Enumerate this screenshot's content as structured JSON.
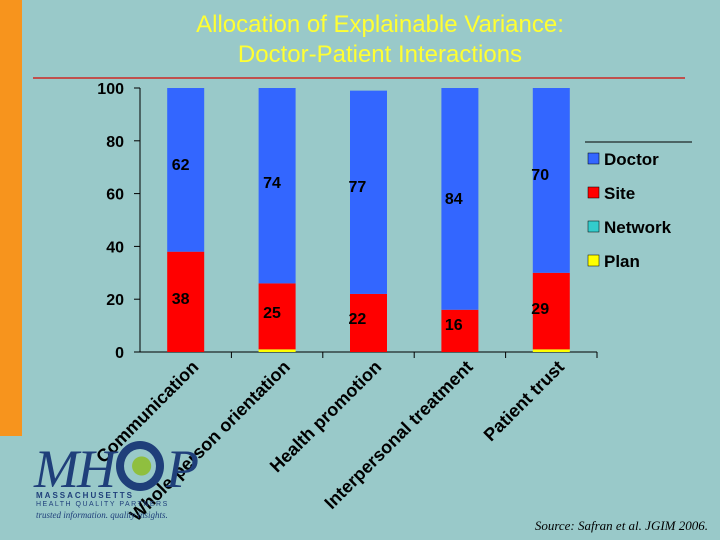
{
  "slide": {
    "title_line1": "Allocation of Explainable Variance:",
    "title_line2": "Doctor-Patient Interactions",
    "source": "Source: Safran et al. JGIM 2006.",
    "logo": {
      "word": "MHQP",
      "line1": "MASSACHUSETTS",
      "line2": "HEALTH QUALITY PARTNERS",
      "line3": "trusted information. quality insights."
    }
  },
  "chart_data": {
    "type": "bar",
    "stacked": true,
    "categories": [
      "Communication",
      "Whole-person orientation",
      "Health promotion",
      "Interpersonal treatment",
      "Patient trust"
    ],
    "series": [
      {
        "name": "Plan",
        "color": "#ffff00",
        "values": [
          0,
          1,
          0,
          0,
          1
        ]
      },
      {
        "name": "Network",
        "color": "#33cccc",
        "values": [
          0,
          0,
          0,
          0,
          0
        ]
      },
      {
        "name": "Site",
        "color": "#ff0000",
        "values": [
          38,
          25,
          22,
          16,
          29
        ]
      },
      {
        "name": "Doctor",
        "color": "#3366ff",
        "values": [
          62,
          74,
          77,
          84,
          70
        ]
      }
    ],
    "data_labels": {
      "Doctor": [
        "62",
        "74",
        "77",
        "84",
        "70"
      ],
      "Site": [
        "38",
        "25",
        "22",
        "16",
        "29"
      ]
    },
    "legend_order": [
      "Doctor",
      "Site",
      "Network",
      "Plan"
    ],
    "legend_position": "right",
    "ylim": [
      0,
      100
    ],
    "yticks": [
      "0",
      "20",
      "40",
      "60",
      "80",
      "100"
    ],
    "xlabel": "",
    "ylabel": ""
  }
}
